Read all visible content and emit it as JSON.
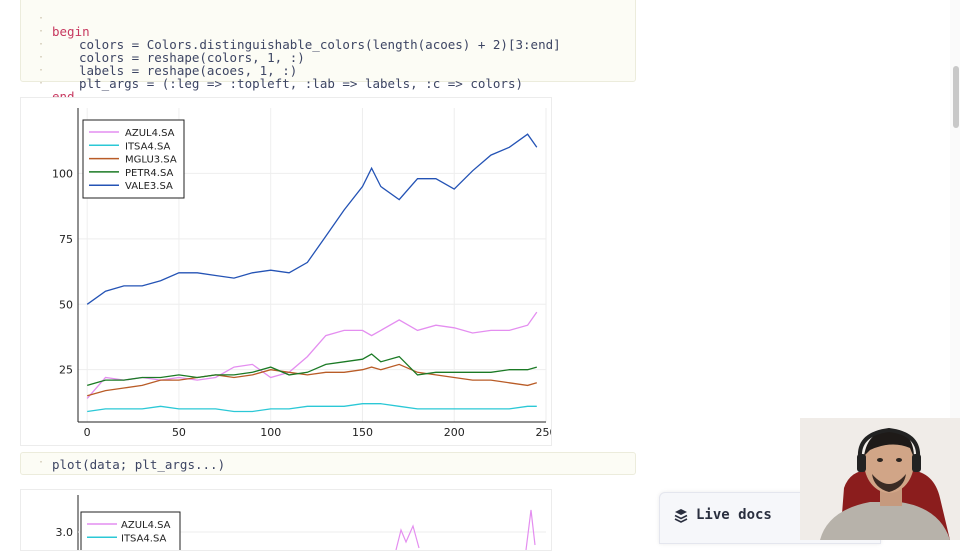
{
  "code_cell_top": {
    "lines": [
      {
        "keyword": "begin",
        "text": ""
      },
      {
        "text": "colors = Colors.distinguishable_colors(length(acoes) + 2)[3:end]"
      },
      {
        "text": "colors = reshape(colors, 1, :)"
      },
      {
        "text": "labels = reshape(acoes, 1, :)"
      },
      {
        "text": "plt_args = (:leg => :topleft, :lab => labels, :c => colors)"
      },
      {
        "keyword": "end",
        "text": ""
      }
    ]
  },
  "code_cell_bottom": {
    "text": "plot(data; plt_args...)"
  },
  "chart_data": [
    {
      "type": "line",
      "title": "",
      "xlabel": "",
      "ylabel": "",
      "xlim": [
        -5,
        250
      ],
      "ylim": [
        5,
        125
      ],
      "xticks": [
        0,
        50,
        100,
        150,
        200,
        250
      ],
      "yticks": [
        25,
        50,
        75,
        100
      ],
      "grid": true,
      "legend": "top-left",
      "x": [
        0,
        10,
        20,
        30,
        40,
        50,
        60,
        70,
        80,
        90,
        100,
        110,
        120,
        130,
        140,
        150,
        155,
        160,
        170,
        180,
        190,
        200,
        210,
        220,
        230,
        240,
        245
      ],
      "series": [
        {
          "name": "AZUL4.SA",
          "color": "#e48ef0",
          "values": [
            14,
            22,
            21,
            22,
            21,
            22,
            21,
            22,
            26,
            27,
            22,
            24,
            30,
            38,
            40,
            40,
            38,
            40,
            44,
            40,
            42,
            41,
            39,
            40,
            40,
            42,
            47
          ]
        },
        {
          "name": "ITSA4.SA",
          "color": "#2bc8d6",
          "values": [
            9,
            10,
            10,
            10,
            11,
            10,
            10,
            10,
            9,
            9,
            10,
            10,
            11,
            11,
            11,
            12,
            12,
            12,
            11,
            10,
            10,
            10,
            10,
            10,
            10,
            11,
            11
          ]
        },
        {
          "name": "MGLU3.SA",
          "color": "#b95c27",
          "values": [
            15,
            17,
            18,
            19,
            21,
            21,
            22,
            23,
            22,
            23,
            25,
            24,
            23,
            24,
            24,
            25,
            26,
            25,
            27,
            24,
            23,
            22,
            21,
            21,
            20,
            19,
            20
          ]
        },
        {
          "name": "PETR4.SA",
          "color": "#1b7a25",
          "values": [
            19,
            21,
            21,
            22,
            22,
            23,
            22,
            23,
            23,
            24,
            26,
            23,
            24,
            27,
            28,
            29,
            31,
            28,
            30,
            23,
            24,
            24,
            24,
            24,
            25,
            25,
            26
          ]
        },
        {
          "name": "VALE3.SA",
          "color": "#2453b5",
          "values": [
            50,
            55,
            57,
            57,
            59,
            62,
            62,
            61,
            60,
            62,
            63,
            62,
            66,
            76,
            86,
            95,
            102,
            95,
            90,
            98,
            98,
            94,
            101,
            107,
            110,
            115,
            110
          ]
        }
      ]
    },
    {
      "type": "line",
      "title": "",
      "xlabel": "",
      "ylabel": "",
      "yticks": [
        3.0
      ],
      "legend": "top-left",
      "series": [
        {
          "name": "AZUL4.SA",
          "color": "#e48ef0"
        },
        {
          "name": "ITSA4.SA",
          "color": "#2bc8d6"
        }
      ]
    }
  ],
  "live_docs": {
    "icon": "book-stack-icon",
    "label": "Live docs"
  }
}
